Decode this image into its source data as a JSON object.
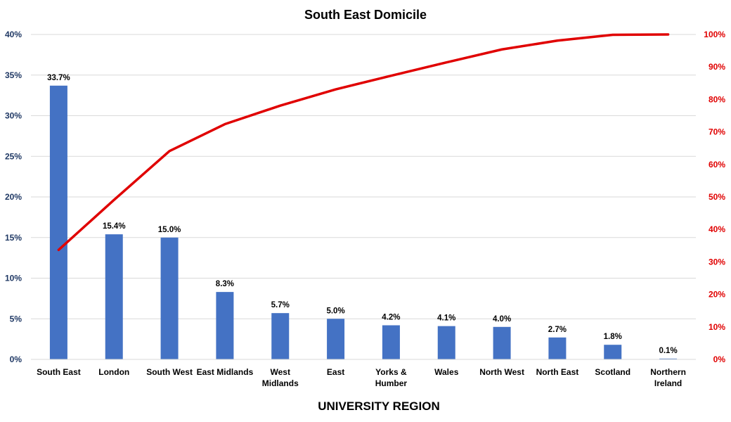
{
  "chart_data": {
    "type": "bar",
    "title": "South East Domicile",
    "xlabel": "UNIVERSITY REGION",
    "ylabel": "",
    "categories": [
      "South East",
      "London",
      "South West",
      "East Midlands",
      "West Midlands",
      "East",
      "Yorks & Humber",
      "Wales",
      "North West",
      "North East",
      "Scotland",
      "Northern Ireland"
    ],
    "category_lines": [
      [
        "South East"
      ],
      [
        "London"
      ],
      [
        "South West"
      ],
      [
        "East Midlands"
      ],
      [
        "West",
        "Midlands"
      ],
      [
        "East"
      ],
      [
        "Yorks &",
        "Humber"
      ],
      [
        "Wales"
      ],
      [
        "North West"
      ],
      [
        "North East"
      ],
      [
        "Scotland"
      ],
      [
        "Northern",
        "Ireland"
      ]
    ],
    "series": [
      {
        "type": "bar",
        "axis": "left",
        "color": "#4472c4",
        "values": [
          33.7,
          15.4,
          15.0,
          8.3,
          5.7,
          5.0,
          4.2,
          4.1,
          4.0,
          2.7,
          1.8,
          0.1
        ],
        "data_labels": [
          "33.7%",
          "15.4%",
          "15.0%",
          "8.3%",
          "5.7%",
          "5.0%",
          "4.2%",
          "4.1%",
          "4.0%",
          "2.7%",
          "1.8%",
          "0.1%"
        ]
      },
      {
        "type": "line",
        "axis": "right",
        "color": "#e00000",
        "values": [
          33.7,
          49.1,
          64.1,
          72.4,
          78.1,
          83.1,
          87.3,
          91.4,
          95.4,
          98.1,
          99.9,
          100.0
        ]
      }
    ],
    "ylim": [
      0,
      40
    ],
    "y2lim": [
      0,
      100
    ],
    "yticks": [
      "0%",
      "5%",
      "10%",
      "15%",
      "20%",
      "25%",
      "30%",
      "35%",
      "40%"
    ],
    "y2ticks": [
      "0%",
      "10%",
      "20%",
      "30%",
      "40%",
      "50%",
      "60%",
      "70%",
      "80%",
      "90%",
      "100%"
    ],
    "grid": true,
    "legend": "none"
  }
}
